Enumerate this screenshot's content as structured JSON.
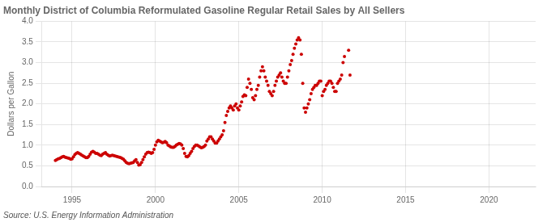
{
  "chart_data": {
    "type": "scatter",
    "title": "Monthly District of Columbia Reformulated Gasoline Regular Retail Sales by All Sellers",
    "ylabel": "Dollars per Gallon",
    "annotation": "Source: U.S. Energy Information Administration",
    "color": "#cc0000",
    "grid": true,
    "xlim": [
      1993.2,
      2022.8
    ],
    "ylim": [
      0.0,
      4.0
    ],
    "xticks": [
      1995,
      2000,
      2005,
      2010,
      2015,
      2020
    ],
    "yticks": [
      {
        "value": 0.0,
        "label": "0.0"
      },
      0.5,
      {
        "value": 1.0,
        "label": "1.0"
      },
      1.5,
      {
        "value": 2.0,
        "label": "2.0"
      },
      2.5,
      {
        "value": 3.0,
        "label": "3.0"
      },
      3.5,
      {
        "value": 4.0,
        "label": "4.0"
      }
    ],
    "x": [
      1994.0,
      1994.083,
      1994.167,
      1994.25,
      1994.333,
      1994.417,
      1994.5,
      1994.583,
      1994.667,
      1994.75,
      1994.833,
      1994.917,
      1995.0,
      1995.083,
      1995.167,
      1995.25,
      1995.333,
      1995.417,
      1995.5,
      1995.583,
      1995.667,
      1995.75,
      1995.833,
      1995.917,
      1996.0,
      1996.083,
      1996.167,
      1996.25,
      1996.333,
      1996.417,
      1996.5,
      1996.583,
      1996.667,
      1996.75,
      1996.833,
      1996.917,
      1997.0,
      1997.083,
      1997.167,
      1997.25,
      1997.333,
      1997.417,
      1997.5,
      1997.583,
      1997.667,
      1997.75,
      1997.833,
      1997.917,
      1998.0,
      1998.083,
      1998.167,
      1998.25,
      1998.333,
      1998.417,
      1998.5,
      1998.583,
      1998.667,
      1998.75,
      1998.833,
      1998.917,
      1999.0,
      1999.083,
      1999.167,
      1999.25,
      1999.333,
      1999.417,
      1999.5,
      1999.583,
      1999.667,
      1999.75,
      1999.833,
      1999.917,
      2000.0,
      2000.083,
      2000.167,
      2000.25,
      2000.333,
      2000.417,
      2000.5,
      2000.583,
      2000.667,
      2000.75,
      2000.833,
      2000.917,
      2001.0,
      2001.083,
      2001.167,
      2001.25,
      2001.333,
      2001.417,
      2001.5,
      2001.583,
      2001.667,
      2001.75,
      2001.833,
      2001.917,
      2002.0,
      2002.083,
      2002.167,
      2002.25,
      2002.333,
      2002.417,
      2002.5,
      2002.583,
      2002.667,
      2002.75,
      2002.833,
      2002.917,
      2003.0,
      2003.083,
      2003.167,
      2003.25,
      2003.333,
      2003.417,
      2003.5,
      2003.583,
      2003.667,
      2003.75,
      2003.833,
      2003.917,
      2004.0,
      2004.083,
      2004.167,
      2004.25,
      2004.333,
      2004.417,
      2004.5,
      2004.583,
      2004.667,
      2004.75,
      2004.833,
      2004.917,
      2005.0,
      2005.083,
      2005.167,
      2005.25,
      2005.333,
      2005.417,
      2005.5,
      2005.583,
      2005.667,
      2005.75,
      2005.833,
      2005.917,
      2006.0,
      2006.083,
      2006.167,
      2006.25,
      2006.333,
      2006.417,
      2006.5,
      2006.583,
      2006.667,
      2006.75,
      2006.833,
      2006.917,
      2007.0,
      2007.083,
      2007.167,
      2007.25,
      2007.333,
      2007.417,
      2007.5,
      2007.583,
      2007.667,
      2007.75,
      2007.833,
      2007.917,
      2008.0,
      2008.083,
      2008.167,
      2008.25,
      2008.333,
      2008.417,
      2008.5,
      2008.583,
      2008.667,
      2008.75,
      2008.833,
      2008.917,
      2009.0,
      2009.083,
      2009.167,
      2009.25,
      2009.333,
      2009.417,
      2009.5,
      2009.583,
      2009.667,
      2009.75,
      2009.833,
      2009.917,
      2010.0,
      2010.083,
      2010.167,
      2010.25,
      2010.333,
      2010.417,
      2010.5,
      2010.583,
      2010.667,
      2010.75,
      2010.833,
      2010.917,
      2011.0,
      2011.083,
      2011.167,
      2011.25,
      2011.333,
      2011.583,
      2011.667
    ],
    "values": [
      0.63,
      0.65,
      0.67,
      0.68,
      0.7,
      0.72,
      0.73,
      0.71,
      0.7,
      0.69,
      0.68,
      0.66,
      0.67,
      0.72,
      0.77,
      0.8,
      0.82,
      0.8,
      0.78,
      0.76,
      0.74,
      0.72,
      0.7,
      0.7,
      0.73,
      0.78,
      0.83,
      0.85,
      0.83,
      0.8,
      0.8,
      0.78,
      0.76,
      0.75,
      0.78,
      0.8,
      0.82,
      0.78,
      0.76,
      0.74,
      0.75,
      0.76,
      0.75,
      0.74,
      0.73,
      0.72,
      0.71,
      0.7,
      0.68,
      0.66,
      0.62,
      0.58,
      0.56,
      0.55,
      0.56,
      0.57,
      0.58,
      0.62,
      0.65,
      0.58,
      0.52,
      0.53,
      0.58,
      0.65,
      0.72,
      0.78,
      0.82,
      0.83,
      0.82,
      0.8,
      0.82,
      0.9,
      1.0,
      1.08,
      1.12,
      1.1,
      1.08,
      1.06,
      1.07,
      1.09,
      1.06,
      1.0,
      0.98,
      0.96,
      0.95,
      0.95,
      0.97,
      1.0,
      1.02,
      1.04,
      1.03,
      1.0,
      0.92,
      0.8,
      0.73,
      0.72,
      0.75,
      0.8,
      0.85,
      0.92,
      0.97,
      1.0,
      1.0,
      0.98,
      0.96,
      0.94,
      0.95,
      0.97,
      1.0,
      1.1,
      1.15,
      1.2,
      1.2,
      1.15,
      1.1,
      1.05,
      1.05,
      1.1,
      1.15,
      1.2,
      1.25,
      1.35,
      1.55,
      1.72,
      1.82,
      1.9,
      1.95,
      1.9,
      1.85,
      1.95,
      2.0,
      1.9,
      1.85,
      1.95,
      2.05,
      2.18,
      2.22,
      2.2,
      2.4,
      2.6,
      2.5,
      2.35,
      2.15,
      2.1,
      2.2,
      2.35,
      2.45,
      2.65,
      2.8,
      2.9,
      2.8,
      2.65,
      2.55,
      2.45,
      2.3,
      2.25,
      2.2,
      2.3,
      2.45,
      2.55,
      2.65,
      2.7,
      2.75,
      2.65,
      2.55,
      2.5,
      2.5,
      2.65,
      2.8,
      2.95,
      3.05,
      3.2,
      3.35,
      3.45,
      3.55,
      3.6,
      3.55,
      3.2,
      2.5,
      1.9,
      1.8,
      1.9,
      2.0,
      2.1,
      2.25,
      2.35,
      2.4,
      2.45,
      2.45,
      2.5,
      2.55,
      2.55,
      2.2,
      2.3,
      2.35,
      2.45,
      2.5,
      2.55,
      2.55,
      2.5,
      2.4,
      2.3,
      2.3,
      2.5,
      2.55,
      2.6,
      2.7,
      3.0,
      3.15,
      3.3,
      2.7
    ]
  }
}
